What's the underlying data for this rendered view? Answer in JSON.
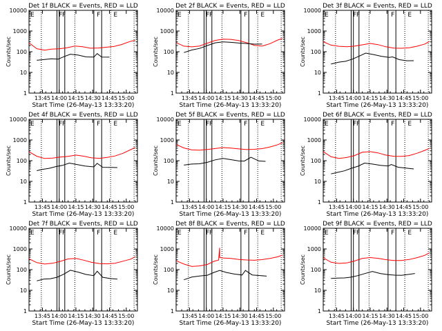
{
  "figure": {
    "colors": {
      "background": "#ffffff",
      "axes": "#000000",
      "events": "#000000",
      "lld": "#ff0000",
      "markers": "#000000"
    },
    "shared": {
      "ylabel": "Counts/sec",
      "xlabel": "Start Time (26-May-13 13:33:20)",
      "yticks": [
        "1",
        "10",
        "100",
        "1000",
        "10000"
      ],
      "xticks": [
        "13:45",
        "14:00",
        "14:15",
        "14:30",
        "14:45",
        "15:00"
      ],
      "flag_labels": [
        "F",
        "F",
        "F",
        "E"
      ]
    }
  },
  "chart_data": [
    {
      "type": "line",
      "title": "Det 1f BLACK = Events, RED = LLD",
      "ylabel": "Counts/sec",
      "xlabel": "Start Time (26-May-13 13:33:20)",
      "yscale": "log",
      "ylim": [
        1,
        10000
      ],
      "xlim": [
        "13:33",
        "15:10"
      ],
      "series": [
        {
          "name": "BLACK = Events",
          "color": "#000000",
          "x": [
            "13:40",
            "13:47",
            "13:53",
            "13:59",
            "14:04",
            "14:10",
            "14:17",
            "14:24",
            "14:31",
            "14:34",
            "14:38",
            "14:45"
          ],
          "y": [
            40,
            45,
            50,
            48,
            62,
            80,
            70,
            55,
            52,
            75,
            50,
            50
          ]
        },
        {
          "name": "RED = LLD",
          "color": "#ff0000",
          "x": [
            "13:33",
            "13:40",
            "13:47",
            "13:53",
            "14:00",
            "14:07",
            "14:14",
            "14:21",
            "14:28",
            "14:35",
            "14:42",
            "14:49",
            "14:56",
            "15:03",
            "15:08"
          ],
          "y": [
            280,
            150,
            130,
            145,
            150,
            165,
            190,
            170,
            140,
            140,
            150,
            165,
            210,
            300,
            360
          ]
        }
      ]
    },
    {
      "type": "line",
      "title": "Det 2f BLACK = Events, RED = LLD",
      "ylabel": "Counts/sec",
      "xlabel": "Start Time (26-May-13 13:33:20)",
      "yscale": "log",
      "ylim": [
        1,
        10000
      ],
      "xlim": [
        "13:33",
        "15:10"
      ],
      "series": [
        {
          "name": "BLACK = Events",
          "color": "#000000",
          "x": [
            "13:40",
            "13:47",
            "13:54",
            "14:01",
            "14:08",
            "14:15",
            "14:22",
            "14:29",
            "14:36",
            "14:43",
            "14:50"
          ],
          "y": [
            100,
            130,
            150,
            200,
            260,
            280,
            260,
            240,
            230,
            220,
            230
          ]
        },
        {
          "name": "RED = LLD",
          "color": "#ff0000",
          "x": [
            "13:33",
            "13:40",
            "13:47",
            "13:54",
            "14:01",
            "14:08",
            "14:15",
            "14:22",
            "14:29",
            "14:36",
            "14:43",
            "14:50",
            "14:57",
            "15:04",
            "15:08"
          ],
          "y": [
            300,
            200,
            180,
            190,
            250,
            330,
            370,
            360,
            320,
            260,
            200,
            190,
            260,
            400,
            480
          ]
        }
      ]
    },
    {
      "type": "line",
      "title": "Det 3f BLACK = Events, RED = LLD",
      "ylabel": "Counts/sec",
      "xlabel": "Start Time (26-May-13 13:33:20)",
      "yscale": "log",
      "ylim": [
        1,
        10000
      ],
      "xlim": [
        "13:33",
        "15:10"
      ],
      "series": [
        {
          "name": "BLACK = Events",
          "color": "#000000",
          "x": [
            "13:40",
            "13:47",
            "13:53",
            "13:59",
            "14:05",
            "14:11",
            "14:18",
            "14:25",
            "14:32",
            "14:35",
            "14:41",
            "14:48",
            "14:54"
          ],
          "y": [
            25,
            30,
            32,
            40,
            55,
            80,
            70,
            60,
            55,
            60,
            45,
            40,
            40
          ]
        },
        {
          "name": "RED = LLD",
          "color": "#ff0000",
          "x": [
            "13:33",
            "13:40",
            "13:47",
            "13:54",
            "14:01",
            "14:08",
            "14:15",
            "14:22",
            "14:29",
            "14:36",
            "14:43",
            "14:50",
            "14:57",
            "15:04",
            "15:08"
          ],
          "y": [
            300,
            200,
            170,
            160,
            170,
            200,
            240,
            220,
            180,
            160,
            160,
            170,
            200,
            250,
            320
          ]
        }
      ]
    },
    {
      "type": "line",
      "title": "Det 4f BLACK = Events, RED = LLD",
      "ylabel": "Counts/sec",
      "xlabel": "Start Time (26-May-13 13:33:20)",
      "yscale": "log",
      "ylim": [
        1,
        10000
      ],
      "xlim": [
        "13:33",
        "15:10"
      ],
      "series": [
        {
          "name": "BLACK = Events",
          "color": "#000000",
          "x": [
            "13:40",
            "13:45",
            "13:51",
            "13:57",
            "14:03",
            "14:09",
            "14:16",
            "14:23",
            "14:31",
            "14:34",
            "14:39",
            "14:46",
            "14:52"
          ],
          "y": [
            30,
            35,
            40,
            50,
            60,
            80,
            70,
            60,
            55,
            80,
            50,
            48,
            45
          ]
        },
        {
          "name": "RED = LLD",
          "color": "#ff0000",
          "x": [
            "13:33",
            "13:40",
            "13:47",
            "13:54",
            "14:01",
            "14:08",
            "14:15",
            "14:22",
            "14:29",
            "14:36",
            "14:43",
            "14:50",
            "14:57",
            "15:04",
            "15:08"
          ],
          "y": [
            250,
            150,
            120,
            130,
            150,
            170,
            200,
            180,
            150,
            140,
            150,
            170,
            220,
            320,
            400
          ]
        }
      ]
    },
    {
      "type": "line",
      "title": "Det 5f BLACK = Events, RED = LLD",
      "ylabel": "Counts/sec",
      "xlabel": "Start Time (26-May-13 13:33:20)",
      "yscale": "log",
      "ylim": [
        1,
        10000
      ],
      "xlim": [
        "13:33",
        "15:10"
      ],
      "series": [
        {
          "name": "BLACK = Events",
          "color": "#000000",
          "x": [
            "13:40",
            "13:47",
            "13:54",
            "14:01",
            "14:08",
            "14:15",
            "14:22",
            "14:29",
            "14:34",
            "14:40",
            "14:47",
            "14:53"
          ],
          "y": [
            60,
            70,
            75,
            90,
            120,
            140,
            120,
            100,
            95,
            140,
            90,
            85
          ]
        },
        {
          "name": "RED = LLD",
          "color": "#ff0000",
          "x": [
            "13:33",
            "13:40",
            "13:47",
            "13:54",
            "14:01",
            "14:08",
            "14:15",
            "14:22",
            "14:29",
            "14:36",
            "14:43",
            "14:50",
            "14:57",
            "15:04",
            "15:08"
          ],
          "y": [
            600,
            420,
            350,
            350,
            380,
            420,
            460,
            420,
            370,
            330,
            330,
            350,
            420,
            550,
            700
          ]
        }
      ]
    },
    {
      "type": "line",
      "title": "Det 6f BLACK = Events, RED = LLD",
      "ylabel": "Counts/sec",
      "xlabel": "Start Time (26-May-13 13:33:20)",
      "yscale": "log",
      "ylim": [
        1,
        10000
      ],
      "xlim": [
        "13:33",
        "15:10"
      ],
      "series": [
        {
          "name": "BLACK = Events",
          "color": "#000000",
          "x": [
            "13:40",
            "13:46",
            "13:52",
            "13:58",
            "14:04",
            "14:10",
            "14:17",
            "14:24",
            "14:31",
            "14:34",
            "14:40",
            "14:47",
            "14:54"
          ],
          "y": [
            25,
            30,
            35,
            45,
            55,
            75,
            65,
            55,
            50,
            60,
            45,
            42,
            40
          ]
        },
        {
          "name": "RED = LLD",
          "color": "#ff0000",
          "x": [
            "13:33",
            "13:40",
            "13:47",
            "13:54",
            "14:01",
            "14:08",
            "14:15",
            "14:22",
            "14:29",
            "14:36",
            "14:43",
            "14:50",
            "14:57",
            "15:04",
            "15:08"
          ],
          "y": [
            300,
            170,
            140,
            150,
            180,
            250,
            260,
            220,
            170,
            150,
            150,
            170,
            230,
            330,
            420
          ]
        }
      ]
    },
    {
      "type": "line",
      "title": "Det 7f BLACK = Events, RED = LLD",
      "ylabel": "Counts/sec",
      "xlabel": "Start Time (26-May-13 13:33:20)",
      "yscale": "log",
      "ylim": [
        1,
        10000
      ],
      "xlim": [
        "13:33",
        "15:10"
      ],
      "series": [
        {
          "name": "BLACK = Events",
          "color": "#000000",
          "x": [
            "13:40",
            "13:46",
            "13:52",
            "13:58",
            "14:04",
            "14:10",
            "14:17",
            "14:24",
            "14:31",
            "14:34",
            "14:39",
            "14:46",
            "14:52"
          ],
          "y": [
            30,
            35,
            35,
            40,
            55,
            85,
            70,
            55,
            50,
            85,
            45,
            40,
            38
          ]
        },
        {
          "name": "RED = LLD",
          "color": "#ff0000",
          "x": [
            "13:33",
            "13:40",
            "13:47",
            "13:54",
            "14:01",
            "14:08",
            "14:15",
            "14:22",
            "14:29",
            "14:36",
            "14:43",
            "14:50",
            "14:57",
            "15:04",
            "15:08"
          ],
          "y": [
            350,
            220,
            180,
            190,
            230,
            300,
            320,
            270,
            220,
            200,
            200,
            220,
            280,
            350,
            450
          ]
        }
      ]
    },
    {
      "type": "line",
      "title": "Det 8f BLACK = Events, RED = LLD",
      "ylabel": "Counts/sec",
      "xlabel": "Start Time (26-May-13 13:33:20)",
      "yscale": "log",
      "ylim": [
        1,
        10000
      ],
      "xlim": [
        "13:33",
        "15:10"
      ],
      "series": [
        {
          "name": "BLACK = Events",
          "color": "#000000",
          "x": [
            "13:40",
            "13:47",
            "13:54",
            "14:01",
            "14:07",
            "14:12",
            "14:18",
            "14:25",
            "14:32",
            "14:35",
            "14:41",
            "14:48",
            "14:54"
          ],
          "y": [
            30,
            40,
            45,
            50,
            70,
            90,
            75,
            65,
            60,
            100,
            60,
            55,
            50
          ]
        },
        {
          "name": "RED = LLD",
          "color": "#ff0000",
          "x": [
            "13:33",
            "13:40",
            "13:47",
            "13:54",
            "14:01",
            "14:07",
            "14:11",
            "14:12",
            "14:12",
            "14:15",
            "14:22",
            "14:29",
            "14:36",
            "14:43",
            "14:50",
            "14:57",
            "15:04",
            "15:08"
          ],
          "y": [
            250,
            170,
            130,
            140,
            170,
            250,
            300,
            1200,
            420,
            400,
            380,
            330,
            300,
            280,
            290,
            320,
            380,
            460
          ]
        }
      ]
    },
    {
      "type": "line",
      "title": "Det 9f BLACK = Events, RED = LLD",
      "ylabel": "Counts/sec",
      "xlabel": "Start Time (26-May-13 13:33:20)",
      "yscale": "log",
      "ylim": [
        1,
        10000
      ],
      "xlim": [
        "13:33",
        "15:10"
      ],
      "series": [
        {
          "name": "BLACK = Events",
          "color": "#000000",
          "x": [
            "13:40",
            "13:46",
            "13:52",
            "13:58",
            "14:04",
            "14:10",
            "14:17",
            "14:24",
            "14:31",
            "14:37",
            "14:43",
            "14:49",
            "14:55"
          ],
          "y": [
            35,
            38,
            40,
            45,
            55,
            70,
            90,
            70,
            60,
            55,
            52,
            55,
            60
          ]
        },
        {
          "name": "RED = LLD",
          "color": "#ff0000",
          "x": [
            "13:33",
            "13:40",
            "13:47",
            "13:54",
            "14:01",
            "14:08",
            "14:15",
            "14:22",
            "14:29",
            "14:36",
            "14:43",
            "14:50",
            "14:57",
            "15:04",
            "15:08"
          ],
          "y": [
            350,
            220,
            200,
            220,
            280,
            380,
            420,
            380,
            320,
            280,
            270,
            290,
            350,
            450,
            600
          ]
        }
      ]
    }
  ]
}
